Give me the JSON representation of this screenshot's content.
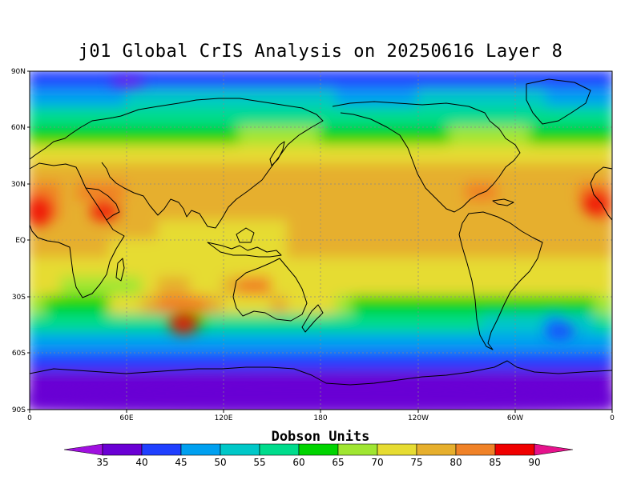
{
  "title": "j01 Global CrIS Analysis on 20250616 Layer 8",
  "colorbar_title": "Dobson Units",
  "lat_labels": [
    "90N",
    "60N",
    "30N",
    "EQ",
    "30S",
    "60S",
    "90S"
  ],
  "lon_labels": [
    "0",
    "60E",
    "120E",
    "180",
    "120W",
    "60W",
    "0"
  ],
  "levels": [
    "35",
    "40",
    "45",
    "50",
    "55",
    "60",
    "65",
    "70",
    "75",
    "80",
    "85",
    "90"
  ],
  "colors": [
    "#a010e0",
    "#6a00d4",
    "#2040ff",
    "#00a0f0",
    "#00c8c8",
    "#00dc8c",
    "#00d400",
    "#a0e632",
    "#e6dc32",
    "#e6af2d",
    "#f08228",
    "#f00000",
    "#e6128c"
  ],
  "chart_data": {
    "type": "heatmap",
    "title": "j01 Global CrIS Analysis on 20250616 Layer 8",
    "units": "Dobson Units",
    "x_range": [
      "0",
      "0"
    ],
    "y_range": [
      "90S",
      "90N"
    ],
    "rows_lat": [
      "85N",
      "75N",
      "65N",
      "55N",
      "45N",
      "35N",
      "25N",
      "15N",
      "5N",
      "5S",
      "15S",
      "25S",
      "35S",
      "45S",
      "55S",
      "65S",
      "75S",
      "85S"
    ],
    "cols_lon": [
      "5E",
      "15E",
      "25E",
      "35E",
      "45E",
      "55E",
      "65E",
      "75E",
      "85E",
      "95E",
      "105E",
      "115E",
      "125E",
      "135E",
      "145E",
      "155E",
      "165E",
      "175E",
      "175W",
      "165W",
      "155W",
      "145W",
      "135W",
      "125W",
      "115W",
      "105W",
      "95W",
      "85W",
      "75W",
      "65W",
      "55W",
      "45W",
      "35W",
      "25W",
      "15W",
      "5W"
    ],
    "values": [
      [
        42,
        42,
        42,
        42,
        42,
        41,
        41,
        40,
        40,
        41,
        41,
        41,
        42,
        42,
        42,
        42,
        42,
        42,
        42,
        42,
        42,
        42,
        42,
        42,
        42,
        42,
        42,
        42,
        42,
        42,
        42,
        42,
        42,
        42,
        42,
        42
      ],
      [
        48,
        48,
        48,
        48,
        48,
        48,
        50,
        50,
        50,
        50,
        50,
        50,
        50,
        52,
        52,
        52,
        52,
        50,
        50,
        48,
        48,
        48,
        48,
        48,
        50,
        50,
        52,
        52,
        52,
        52,
        50,
        50,
        48,
        48,
        48,
        48
      ],
      [
        58,
        58,
        57,
        56,
        56,
        56,
        56,
        58,
        58,
        58,
        58,
        58,
        58,
        58,
        58,
        58,
        58,
        58,
        57,
        57,
        56,
        56,
        56,
        56,
        58,
        58,
        58,
        58,
        58,
        58,
        58,
        58,
        58,
        58,
        58,
        58
      ],
      [
        63,
        63,
        63,
        63,
        63,
        64,
        64,
        64,
        64,
        64,
        64,
        64,
        64,
        65,
        65,
        65,
        65,
        65,
        64,
        64,
        64,
        64,
        64,
        64,
        64,
        64,
        65,
        65,
        66,
        66,
        65,
        64,
        64,
        64,
        64,
        63
      ],
      [
        70,
        70,
        70,
        70,
        70,
        72,
        72,
        72,
        72,
        72,
        72,
        72,
        72,
        72,
        72,
        72,
        70,
        70,
        70,
        70,
        70,
        70,
        70,
        70,
        70,
        70,
        72,
        72,
        72,
        72,
        72,
        70,
        70,
        70,
        70,
        70
      ],
      [
        76,
        76,
        76,
        76,
        76,
        76,
        76,
        76,
        76,
        77,
        77,
        78,
        78,
        77,
        76,
        76,
        76,
        77,
        77,
        77,
        77,
        76,
        76,
        76,
        76,
        76,
        77,
        76,
        76,
        76,
        76,
        76,
        76,
        76,
        76,
        77
      ],
      [
        84,
        82,
        78,
        80,
        84,
        80,
        78,
        76,
        76,
        76,
        76,
        76,
        76,
        76,
        76,
        76,
        77,
        78,
        78,
        78,
        76,
        76,
        76,
        76,
        76,
        76,
        78,
        80,
        80,
        78,
        77,
        76,
        76,
        78,
        80,
        84
      ],
      [
        80,
        80,
        78,
        78,
        80,
        78,
        76,
        76,
        76,
        76,
        76,
        76,
        76,
        76,
        76,
        76,
        76,
        76,
        76,
        76,
        76,
        77,
        77,
        76,
        76,
        76,
        76,
        76,
        76,
        78,
        78,
        76,
        76,
        77,
        78,
        80
      ],
      [
        76,
        76,
        76,
        76,
        76,
        76,
        76,
        76,
        74,
        74,
        74,
        74,
        74,
        74,
        74,
        74,
        76,
        76,
        76,
        76,
        76,
        77,
        77,
        76,
        76,
        76,
        76,
        76,
        76,
        78,
        78,
        76,
        76,
        76,
        76,
        76
      ],
      [
        76,
        76,
        76,
        76,
        76,
        74,
        74,
        74,
        74,
        74,
        74,
        74,
        74,
        74,
        74,
        74,
        76,
        76,
        76,
        77,
        77,
        77,
        77,
        77,
        76,
        76,
        76,
        76,
        76,
        76,
        76,
        76,
        76,
        76,
        76,
        76
      ],
      [
        72,
        72,
        74,
        74,
        72,
        72,
        72,
        72,
        72,
        72,
        72,
        72,
        72,
        72,
        74,
        74,
        74,
        72,
        72,
        74,
        74,
        74,
        74,
        74,
        74,
        74,
        72,
        72,
        72,
        72,
        72,
        72,
        72,
        72,
        72,
        72
      ],
      [
        72,
        72,
        68,
        66,
        66,
        66,
        68,
        72,
        76,
        76,
        74,
        74,
        78,
        80,
        80,
        74,
        72,
        72,
        72,
        72,
        72,
        72,
        72,
        74,
        74,
        72,
        72,
        72,
        72,
        72,
        72,
        72,
        72,
        72,
        72,
        72
      ],
      [
        66,
        62,
        62,
        62,
        62,
        70,
        74,
        76,
        80,
        84,
        82,
        78,
        74,
        70,
        72,
        76,
        74,
        70,
        70,
        66,
        62,
        62,
        62,
        62,
        62,
        60,
        60,
        60,
        60,
        62,
        62,
        62,
        62,
        62,
        62,
        66
      ],
      [
        56,
        56,
        56,
        56,
        56,
        58,
        58,
        58,
        58,
        60,
        60,
        58,
        58,
        58,
        58,
        58,
        58,
        56,
        56,
        56,
        56,
        56,
        56,
        56,
        56,
        56,
        56,
        56,
        54,
        54,
        52,
        52,
        48,
        50,
        52,
        56
      ],
      [
        48,
        48,
        48,
        48,
        48,
        48,
        48,
        48,
        48,
        48,
        48,
        48,
        48,
        48,
        48,
        48,
        48,
        48,
        48,
        48,
        48,
        48,
        48,
        48,
        48,
        48,
        48,
        48,
        48,
        48,
        48,
        48,
        48,
        48,
        48,
        48
      ],
      [
        43,
        43,
        43,
        43,
        43,
        43,
        43,
        43,
        43,
        43,
        43,
        43,
        43,
        43,
        43,
        43,
        43,
        43,
        43,
        43,
        43,
        43,
        43,
        43,
        43,
        43,
        43,
        43,
        43,
        43,
        43,
        43,
        43,
        43,
        43,
        43
      ],
      [
        39,
        39,
        39,
        39,
        39,
        39,
        39,
        39,
        39,
        39,
        39,
        39,
        39,
        39,
        39,
        39,
        39,
        39,
        39,
        39,
        39,
        39,
        39,
        39,
        39,
        39,
        39,
        38,
        37,
        37,
        37,
        38,
        38,
        39,
        39,
        39
      ],
      [
        38,
        38,
        38,
        38,
        38,
        38,
        38,
        38,
        38,
        38,
        38,
        38,
        38,
        38,
        38,
        38,
        38,
        38,
        38,
        38,
        38,
        38,
        38,
        38,
        38,
        38,
        38,
        38,
        38,
        38,
        38,
        38,
        38,
        38,
        38,
        38
      ]
    ]
  }
}
